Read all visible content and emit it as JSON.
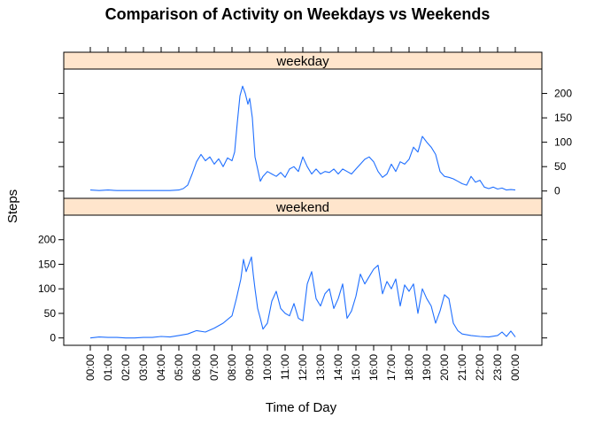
{
  "chart_data": {
    "type": "line",
    "title": "Comparison of Activity on Weekdays vs Weekends",
    "xlabel": "Time of Day",
    "ylabel": "Steps",
    "x_tick_labels": [
      "00:00",
      "01:00",
      "02:00",
      "03:00",
      "04:00",
      "05:00",
      "06:00",
      "07:00",
      "08:00",
      "09:00",
      "10:00",
      "11:00",
      "12:00",
      "13:00",
      "14:00",
      "15:00",
      "16:00",
      "17:00",
      "18:00",
      "19:00",
      "20:00",
      "21:00",
      "22:00",
      "23:00",
      "00:00"
    ],
    "x_unit": "hours",
    "xlim": [
      -1.5,
      25.5
    ],
    "ylim": [
      -15,
      250
    ],
    "y_ticks": [
      0,
      50,
      100,
      150,
      200
    ],
    "line_color": "#1f6fff",
    "strip_color": "#ffe5cc",
    "panels": [
      {
        "name": "weekday",
        "strip_label": "weekday",
        "y_axis_side": "right",
        "points": [
          [
            0,
            2
          ],
          [
            0.5,
            1
          ],
          [
            1,
            2
          ],
          [
            1.5,
            1
          ],
          [
            2,
            1
          ],
          [
            2.5,
            1
          ],
          [
            3,
            1
          ],
          [
            3.5,
            1
          ],
          [
            4,
            1
          ],
          [
            4.5,
            1
          ],
          [
            5,
            2
          ],
          [
            5.25,
            5
          ],
          [
            5.5,
            12
          ],
          [
            5.75,
            35
          ],
          [
            6,
            60
          ],
          [
            6.25,
            75
          ],
          [
            6.5,
            62
          ],
          [
            6.75,
            70
          ],
          [
            7,
            55
          ],
          [
            7.25,
            66
          ],
          [
            7.5,
            50
          ],
          [
            7.75,
            68
          ],
          [
            8,
            62
          ],
          [
            8.15,
            80
          ],
          [
            8.3,
            140
          ],
          [
            8.45,
            195
          ],
          [
            8.6,
            215
          ],
          [
            8.75,
            200
          ],
          [
            8.9,
            178
          ],
          [
            9,
            190
          ],
          [
            9.15,
            150
          ],
          [
            9.3,
            70
          ],
          [
            9.45,
            45
          ],
          [
            9.6,
            20
          ],
          [
            9.75,
            30
          ],
          [
            10,
            40
          ],
          [
            10.25,
            35
          ],
          [
            10.5,
            30
          ],
          [
            10.75,
            38
          ],
          [
            11,
            28
          ],
          [
            11.25,
            45
          ],
          [
            11.5,
            50
          ],
          [
            11.75,
            40
          ],
          [
            12,
            70
          ],
          [
            12.25,
            50
          ],
          [
            12.5,
            35
          ],
          [
            12.75,
            45
          ],
          [
            13,
            35
          ],
          [
            13.25,
            40
          ],
          [
            13.5,
            38
          ],
          [
            13.75,
            45
          ],
          [
            14,
            35
          ],
          [
            14.25,
            45
          ],
          [
            14.5,
            40
          ],
          [
            14.75,
            35
          ],
          [
            15,
            45
          ],
          [
            15.25,
            55
          ],
          [
            15.5,
            65
          ],
          [
            15.75,
            70
          ],
          [
            16,
            60
          ],
          [
            16.25,
            40
          ],
          [
            16.5,
            28
          ],
          [
            16.75,
            35
          ],
          [
            17,
            55
          ],
          [
            17.25,
            40
          ],
          [
            17.5,
            60
          ],
          [
            17.75,
            55
          ],
          [
            18,
            65
          ],
          [
            18.25,
            90
          ],
          [
            18.5,
            80
          ],
          [
            18.75,
            112
          ],
          [
            19,
            100
          ],
          [
            19.25,
            90
          ],
          [
            19.5,
            75
          ],
          [
            19.75,
            40
          ],
          [
            20,
            30
          ],
          [
            20.25,
            28
          ],
          [
            20.5,
            25
          ],
          [
            20.75,
            20
          ],
          [
            21,
            15
          ],
          [
            21.25,
            12
          ],
          [
            21.5,
            30
          ],
          [
            21.75,
            18
          ],
          [
            22,
            22
          ],
          [
            22.25,
            8
          ],
          [
            22.5,
            5
          ],
          [
            22.75,
            8
          ],
          [
            23,
            4
          ],
          [
            23.25,
            6
          ],
          [
            23.5,
            2
          ],
          [
            23.75,
            3
          ],
          [
            24,
            2
          ]
        ]
      },
      {
        "name": "weekend",
        "strip_label": "weekend",
        "y_axis_side": "left",
        "points": [
          [
            0,
            0
          ],
          [
            0.5,
            2
          ],
          [
            1,
            1
          ],
          [
            1.5,
            1
          ],
          [
            2,
            0
          ],
          [
            2.5,
            0
          ],
          [
            3,
            1
          ],
          [
            3.5,
            1
          ],
          [
            4,
            3
          ],
          [
            4.5,
            2
          ],
          [
            5,
            5
          ],
          [
            5.5,
            8
          ],
          [
            6,
            15
          ],
          [
            6.5,
            12
          ],
          [
            7,
            20
          ],
          [
            7.5,
            30
          ],
          [
            8,
            45
          ],
          [
            8.25,
            80
          ],
          [
            8.5,
            120
          ],
          [
            8.65,
            160
          ],
          [
            8.8,
            135
          ],
          [
            8.95,
            150
          ],
          [
            9.1,
            165
          ],
          [
            9.2,
            130
          ],
          [
            9.3,
            100
          ],
          [
            9.45,
            60
          ],
          [
            9.6,
            40
          ],
          [
            9.75,
            18
          ],
          [
            10,
            30
          ],
          [
            10.25,
            75
          ],
          [
            10.5,
            95
          ],
          [
            10.75,
            60
          ],
          [
            11,
            50
          ],
          [
            11.25,
            45
          ],
          [
            11.5,
            70
          ],
          [
            11.75,
            40
          ],
          [
            12,
            35
          ],
          [
            12.25,
            110
          ],
          [
            12.5,
            135
          ],
          [
            12.75,
            80
          ],
          [
            13,
            65
          ],
          [
            13.25,
            90
          ],
          [
            13.5,
            100
          ],
          [
            13.75,
            60
          ],
          [
            14,
            80
          ],
          [
            14.25,
            110
          ],
          [
            14.5,
            40
          ],
          [
            14.75,
            55
          ],
          [
            15,
            85
          ],
          [
            15.25,
            130
          ],
          [
            15.5,
            110
          ],
          [
            15.75,
            125
          ],
          [
            16,
            140
          ],
          [
            16.25,
            148
          ],
          [
            16.5,
            90
          ],
          [
            16.75,
            115
          ],
          [
            17,
            100
          ],
          [
            17.25,
            120
          ],
          [
            17.5,
            65
          ],
          [
            17.75,
            108
          ],
          [
            18,
            95
          ],
          [
            18.25,
            110
          ],
          [
            18.5,
            50
          ],
          [
            18.75,
            100
          ],
          [
            19,
            80
          ],
          [
            19.25,
            65
          ],
          [
            19.5,
            30
          ],
          [
            19.75,
            55
          ],
          [
            20,
            88
          ],
          [
            20.25,
            80
          ],
          [
            20.5,
            30
          ],
          [
            20.75,
            15
          ],
          [
            21,
            8
          ],
          [
            21.5,
            5
          ],
          [
            22,
            3
          ],
          [
            22.5,
            2
          ],
          [
            23,
            5
          ],
          [
            23.25,
            12
          ],
          [
            23.5,
            3
          ],
          [
            23.75,
            14
          ],
          [
            24,
            2
          ]
        ]
      }
    ]
  }
}
